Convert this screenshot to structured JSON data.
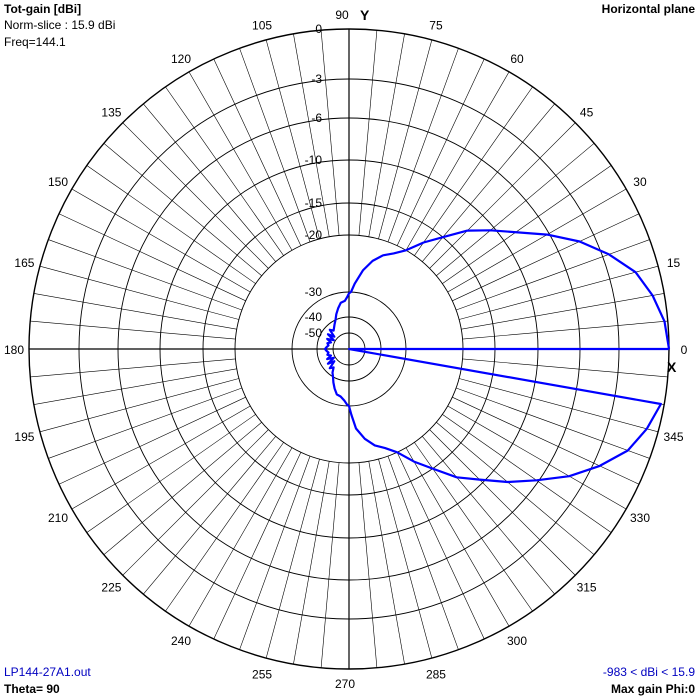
{
  "header": {
    "title": "Tot-gain [dBi]",
    "norm_slice": "Norm-slice : 15.9 dBi",
    "freq": "Freq=144.1",
    "plane": "Horizontal plane"
  },
  "footer": {
    "file": "LP144-27A1.out",
    "theta": "Theta= 90",
    "range": "-983 < dBi < 15.9",
    "max_gain": "Max gain Phi:0"
  },
  "colors": {
    "pattern": "#0000ff",
    "grid": "#000000",
    "footer_text": "#0000c0"
  },
  "chart_data": {
    "type": "polar",
    "title": "Horizontal plane",
    "axis_x_label": "X",
    "axis_y_label": "Y",
    "angle_labels": [
      "0",
      "15",
      "30",
      "45",
      "60",
      "75",
      "90",
      "105",
      "120",
      "135",
      "150",
      "165",
      "180",
      "195",
      "210",
      "225",
      "240",
      "255",
      "270",
      "285",
      "300",
      "315",
      "330",
      "345"
    ],
    "radial_tick_labels": [
      "0",
      "-3",
      "-6",
      "-10",
      "-15",
      "-20",
      "-30",
      "-40",
      "-50"
    ],
    "radial_tick_values": [
      0,
      -3,
      -6,
      -10,
      -15,
      -20,
      -30,
      -40,
      -50
    ],
    "grid_angle_step_deg": 5,
    "grid_major_step_deg": 90,
    "max_gain_dbi": 15.9,
    "series": [
      {
        "azimuth_deg": [
          0,
          5,
          10,
          15,
          20,
          25,
          30,
          40,
          45,
          50,
          55,
          60,
          65,
          70,
          75,
          80,
          85,
          88,
          90,
          92,
          95,
          100,
          105,
          110,
          115,
          120,
          130,
          135,
          140,
          145,
          150,
          155,
          160,
          165,
          170,
          175,
          180,
          185,
          190,
          195,
          200,
          205,
          210,
          215,
          220,
          225,
          230,
          235,
          240,
          245,
          250,
          255,
          260,
          265,
          268,
          270,
          272,
          275,
          280,
          285,
          290,
          295,
          300,
          305,
          310,
          315,
          320,
          325,
          330,
          335,
          340,
          345,
          350,
          355
        ],
        "relative_gain_db": [
          0,
          -0.2,
          -0.7,
          -1.4,
          -2.6,
          -4.2,
          -6.2,
          -10.5,
          -12.5,
          -15,
          -17.5,
          -20,
          -21.5,
          -22.5,
          -24,
          -26,
          -28.5,
          -30,
          -30.5,
          -32,
          -33.5,
          -34,
          -36,
          -38,
          -40,
          -42,
          -45,
          -43,
          -48,
          -44,
          -49,
          -45,
          -48,
          -46,
          -47,
          -46,
          -45,
          -46,
          -47,
          -46,
          -48,
          -45,
          -49,
          -44,
          -48,
          -43,
          -45,
          -42,
          -40,
          -38,
          -36,
          -34,
          -33.5,
          -32,
          -30.5,
          -30,
          -28.5,
          -26,
          -24,
          -22.5,
          -21.5,
          -20,
          -17.5,
          -15,
          -12.5,
          -10.5,
          -8.3,
          -6.2,
          -4.2,
          -2.6,
          -1.4,
          -0.7,
          -0.2
        ]
      }
    ]
  }
}
